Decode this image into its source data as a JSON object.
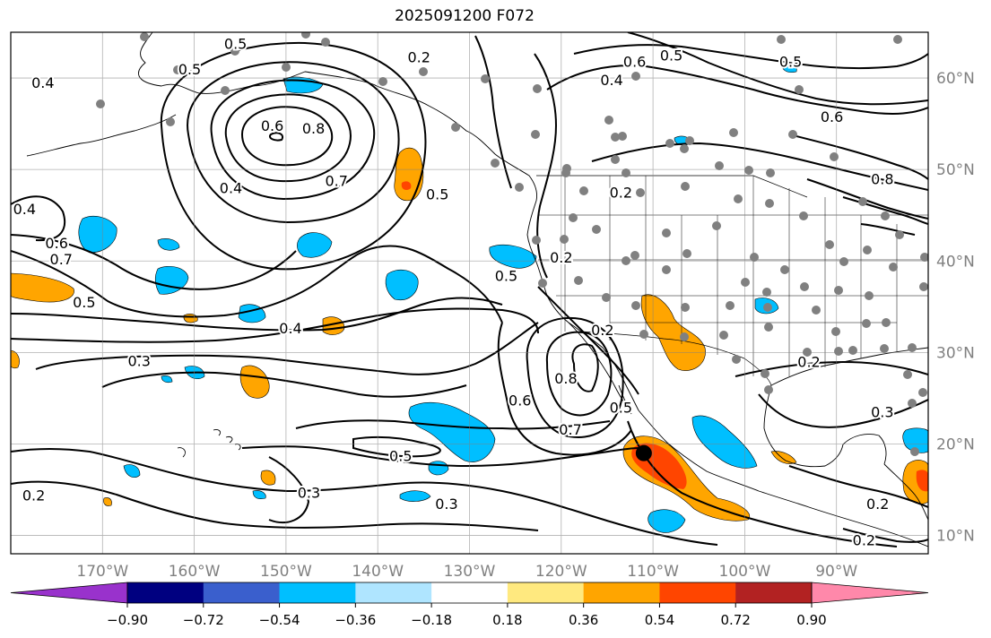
{
  "title": "2025091200 F072",
  "map": {
    "lon_range": [
      -180,
      -80
    ],
    "lat_range": [
      8,
      65
    ],
    "lon_tick_labels": [
      "170°W",
      "160°W",
      "150°W",
      "140°W",
      "130°W",
      "120°W",
      "110°W",
      "100°W",
      "90°W"
    ],
    "lon_tick_values": [
      -170,
      -160,
      -150,
      -140,
      -130,
      -120,
      -110,
      -100,
      -90
    ],
    "lat_tick_labels": [
      "10°N",
      "20°N",
      "30°N",
      "40°N",
      "50°N",
      "60°N"
    ],
    "lat_tick_values": [
      10,
      20,
      30,
      40,
      50,
      60
    ],
    "gridlines": true,
    "marker": {
      "lon": -111,
      "lat": 19,
      "color": "#000000"
    },
    "contour_labels": [
      {
        "text": "0.5",
        "lon": -155.5,
        "lat": 63.8
      },
      {
        "text": "0.5",
        "lon": -160.5,
        "lat": 61
      },
      {
        "text": "0.4",
        "lon": -176.5,
        "lat": 59.5
      },
      {
        "text": "0.2",
        "lon": -135.5,
        "lat": 62.3
      },
      {
        "text": "0.6",
        "lon": -151.5,
        "lat": 54.8
      },
      {
        "text": "0.8",
        "lon": -147,
        "lat": 54.5
      },
      {
        "text": "0.4",
        "lon": -156,
        "lat": 48
      },
      {
        "text": "0.7",
        "lon": -144.5,
        "lat": 48.8
      },
      {
        "text": "0.4",
        "lon": -178.5,
        "lat": 45.7
      },
      {
        "text": "0.6",
        "lon": -175,
        "lat": 42
      },
      {
        "text": "0.7",
        "lon": -174.5,
        "lat": 40.2
      },
      {
        "text": "0.5",
        "lon": -172,
        "lat": 35.5
      },
      {
        "text": "0.4",
        "lon": -149.5,
        "lat": 32.7
      },
      {
        "text": "0.3",
        "lon": -166,
        "lat": 29.1
      },
      {
        "text": "0.5",
        "lon": -126,
        "lat": 38.4
      },
      {
        "text": "0.5",
        "lon": -133.5,
        "lat": 47.3
      },
      {
        "text": "0.2",
        "lon": -120,
        "lat": 40.4
      },
      {
        "text": "0.2",
        "lon": -113.5,
        "lat": 47.5
      },
      {
        "text": "0.6",
        "lon": -112,
        "lat": 61.8
      },
      {
        "text": "0.4",
        "lon": -114.5,
        "lat": 59.8
      },
      {
        "text": "0.5",
        "lon": -108,
        "lat": 62.5
      },
      {
        "text": "0.5",
        "lon": -95,
        "lat": 61.8
      },
      {
        "text": "0.6",
        "lon": -90.5,
        "lat": 55.8
      },
      {
        "text": "0.8",
        "lon": -85,
        "lat": 49
      },
      {
        "text": "0.2",
        "lon": -115.5,
        "lat": 32.5
      },
      {
        "text": "0.8",
        "lon": -119.5,
        "lat": 27.2
      },
      {
        "text": "0.6",
        "lon": -124.5,
        "lat": 24.8
      },
      {
        "text": "0.7",
        "lon": -119,
        "lat": 21.6
      },
      {
        "text": "0.5",
        "lon": -113.5,
        "lat": 24
      },
      {
        "text": "0.5",
        "lon": -137.5,
        "lat": 18.7
      },
      {
        "text": "0.3",
        "lon": -147.5,
        "lat": 14.7
      },
      {
        "text": "0.3",
        "lon": -132.5,
        "lat": 13.5
      },
      {
        "text": "0.2",
        "lon": -177.5,
        "lat": 14.4
      },
      {
        "text": "0.2",
        "lon": -93,
        "lat": 29
      },
      {
        "text": "0.3",
        "lon": -85,
        "lat": 23.5
      },
      {
        "text": "0.2",
        "lon": -85.5,
        "lat": 13.5
      },
      {
        "text": "0.2",
        "lon": -87,
        "lat": 9.5
      }
    ]
  },
  "colorbar": {
    "boundaries": [
      -0.9,
      -0.72,
      -0.54,
      -0.36,
      -0.18,
      0.18,
      0.36,
      0.54,
      0.72,
      0.9
    ],
    "tick_labels": [
      "−0.90",
      "−0.72",
      "−0.54",
      "−0.36",
      "−0.18",
      "0.18",
      "0.36",
      "0.54",
      "0.72",
      "0.90"
    ],
    "colors": [
      "#9932cc",
      "#000080",
      "#3a5fcd",
      "#00bfff",
      "#afe5ff",
      "#ffffff",
      "#ffe97f",
      "#ffa500",
      "#ff4500",
      "#b22222",
      "#ff88aa"
    ],
    "extend": "both"
  }
}
